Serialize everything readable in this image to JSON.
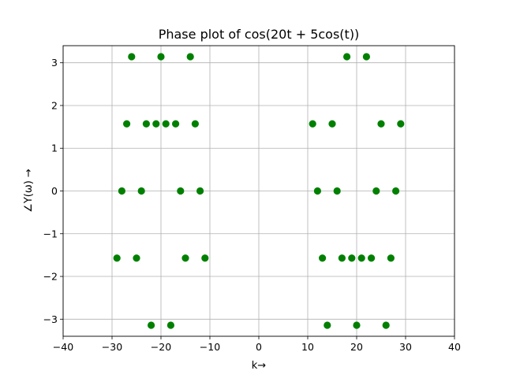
{
  "chart_data": {
    "type": "scatter",
    "title": "Phase plot of cos(20t + 5cos(t))",
    "xlabel": "k→",
    "ylabel": "∠Y(ω) →",
    "xlim": [
      -40,
      40
    ],
    "ylim": [
      -3.4,
      3.4
    ],
    "xticks": [
      -40,
      -30,
      -20,
      -10,
      0,
      10,
      20,
      30,
      40
    ],
    "yticks": [
      -3,
      -2,
      -1,
      0,
      1,
      2,
      3
    ],
    "xtick_labels": [
      "−40",
      "−30",
      "−20",
      "−10",
      "0",
      "10",
      "20",
      "30",
      "40"
    ],
    "ytick_labels": [
      "−3",
      "−2",
      "−1",
      "0",
      "1",
      "2",
      "3"
    ],
    "grid": true,
    "marker_color": "#008000",
    "series": [
      {
        "x": [
          -26,
          -20,
          -14,
          -27,
          -23,
          -21,
          -19,
          -17,
          -13,
          -28,
          -24,
          -16,
          -12,
          -29,
          -25,
          -15,
          -11,
          -22,
          -18,
          18,
          22,
          11,
          15,
          25,
          29,
          12,
          16,
          24,
          28,
          13,
          17,
          19,
          21,
          23,
          27,
          14,
          20,
          26
        ],
        "y": [
          3.1416,
          3.1416,
          3.1416,
          1.5708,
          1.5708,
          1.5708,
          1.5708,
          1.5708,
          1.5708,
          0,
          0,
          0,
          0,
          -1.5708,
          -1.5708,
          -1.5708,
          -1.5708,
          -3.1416,
          -3.1416,
          3.1416,
          3.1416,
          1.5708,
          1.5708,
          1.5708,
          1.5708,
          0,
          0,
          0,
          0,
          -1.5708,
          -1.5708,
          -1.5708,
          -1.5708,
          -1.5708,
          -1.5708,
          -3.1416,
          -3.1416,
          -3.1416
        ]
      }
    ]
  }
}
